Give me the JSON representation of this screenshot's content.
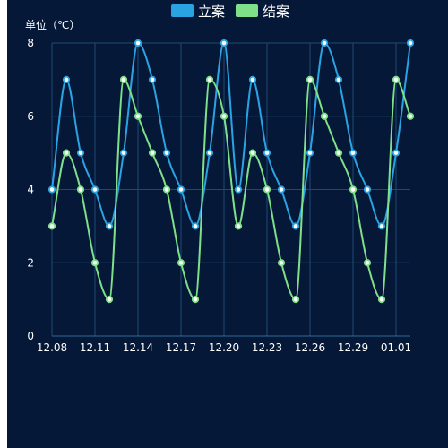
{
  "chart_data": {
    "type": "line",
    "smooth": true,
    "unit_label": "单位（℃）",
    "x": [
      "12.08",
      "12.09",
      "12.10",
      "12.11",
      "12.12",
      "12.13",
      "12.14",
      "12.15",
      "12.16",
      "12.17",
      "12.18",
      "12.19",
      "12.20",
      "12.21",
      "12.22",
      "12.23",
      "12.24",
      "12.25",
      "12.26",
      "12.27",
      "12.28",
      "12.29",
      "12.30",
      "12.31",
      "01.01",
      "01.02"
    ],
    "x_tick_labels": [
      "12.08",
      "12.11",
      "12.14",
      "12.17",
      "12.20",
      "12.23",
      "12.26",
      "12.29",
      "01.01"
    ],
    "ylim": [
      0,
      8
    ],
    "y_ticks": [
      0,
      2,
      4,
      6,
      8
    ],
    "grid": true,
    "legend_position": "top-center",
    "series": [
      {
        "name": "立案",
        "color": "#2aa3e3",
        "values": [
          4,
          7,
          5,
          4,
          3,
          5,
          8,
          7,
          5,
          4,
          3,
          5,
          8,
          4,
          7,
          5,
          4,
          3,
          5,
          8,
          7,
          5,
          4,
          3,
          5,
          8
        ]
      },
      {
        "name": "结案",
        "color": "#7fe08a",
        "values": [
          3,
          5,
          4,
          2,
          1,
          7,
          6,
          5,
          4,
          2,
          1,
          7,
          6,
          3,
          5,
          4,
          2,
          1,
          7,
          6,
          5,
          4,
          2,
          1,
          7,
          6
        ]
      }
    ]
  }
}
